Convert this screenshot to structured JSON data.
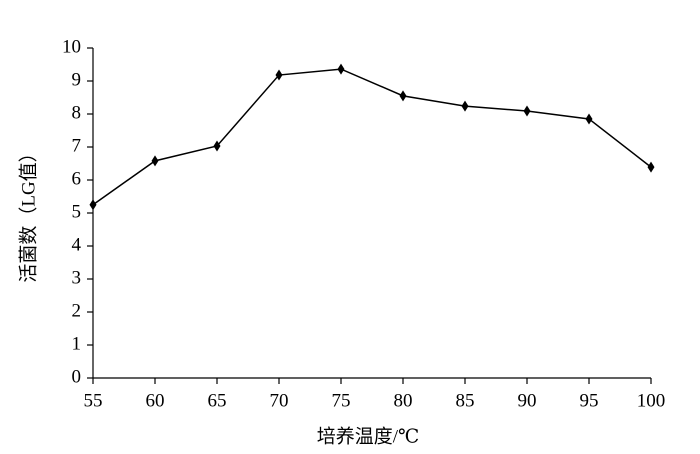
{
  "chart_data": {
    "type": "line",
    "xlabel": "培养温度/℃",
    "ylabel": "活菌数（LG值）",
    "x": [
      55,
      60,
      65,
      70,
      75,
      80,
      85,
      90,
      95,
      100
    ],
    "series": [
      {
        "color": "#000000",
        "values": [
          5.25,
          6.58,
          7.03,
          9.18,
          9.36,
          8.55,
          8.24,
          8.09,
          7.85,
          6.39
        ]
      }
    ],
    "xlim": [
      55,
      100
    ],
    "xticks": [
      55,
      60,
      65,
      70,
      75,
      80,
      85,
      90,
      95,
      100
    ],
    "ylim": [
      0,
      10
    ],
    "yticks": [
      0,
      1,
      2,
      3,
      4,
      5,
      6,
      7,
      8,
      9,
      10
    ],
    "grid": false
  }
}
